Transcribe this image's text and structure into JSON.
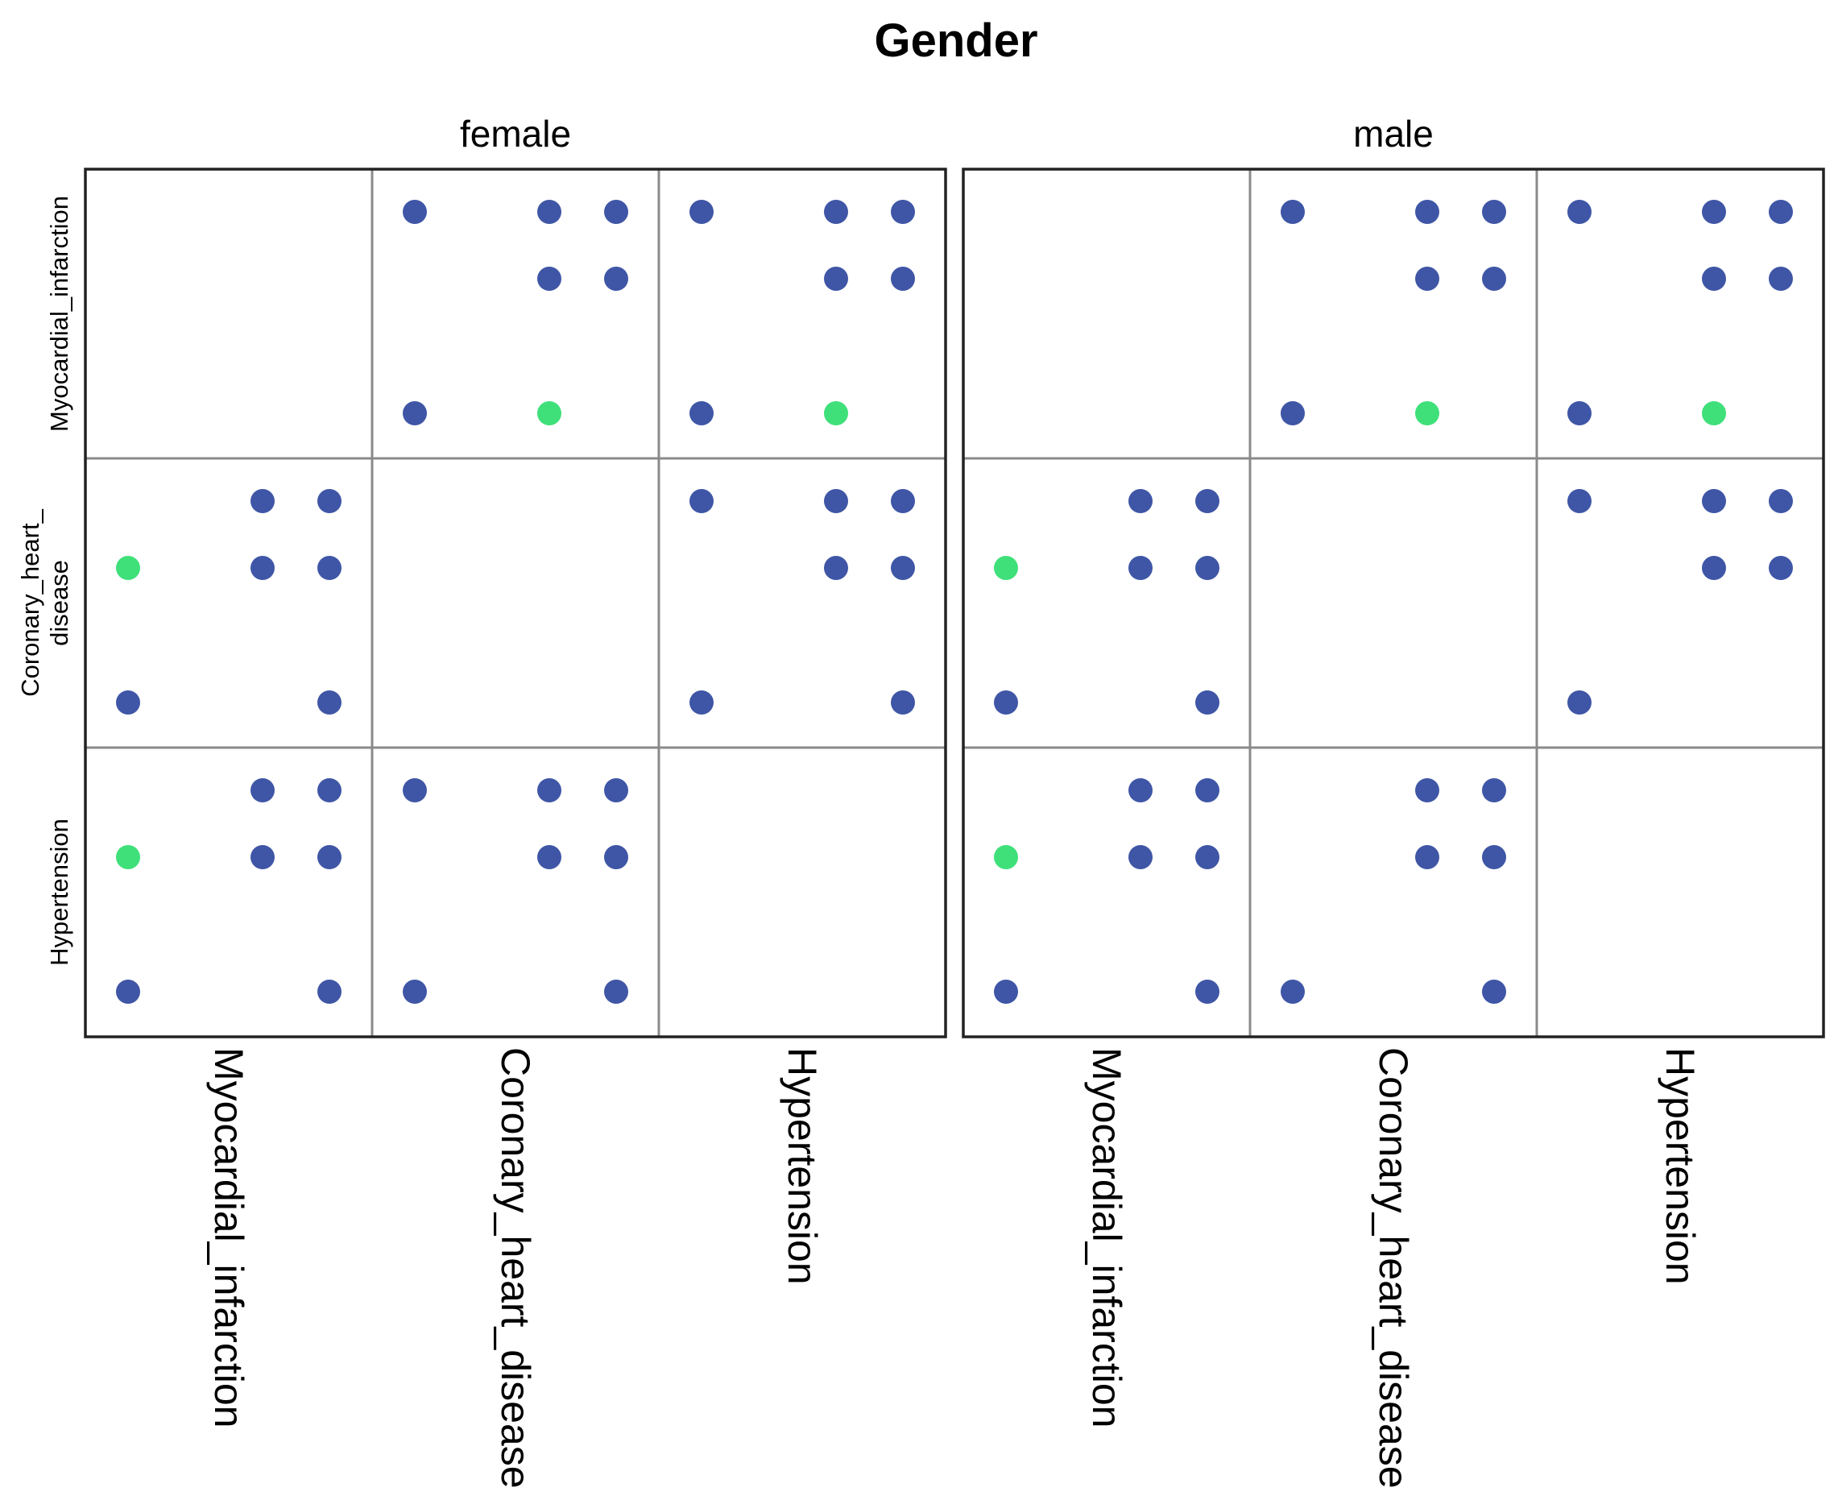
{
  "chart_data": {
    "type": "scatter",
    "chart_kind": "faceted scatterplot matrix",
    "title": "Gender",
    "panels": [
      "female",
      "male"
    ],
    "variables": [
      "Myocardial_infarction",
      "Coronary_heart_disease",
      "Hypertension"
    ],
    "row_labels": [
      [
        "Myocardial_infarction"
      ],
      [
        "Coronary_heart_",
        "disease"
      ],
      [
        "Hypertension"
      ]
    ],
    "col_labels": [
      "Myocardial_infarction",
      "Coronary_heart_disease",
      "Hypertension"
    ],
    "axis_levels": {
      "x": [
        0,
        1,
        2,
        3
      ],
      "y": [
        0,
        1,
        2,
        3
      ]
    },
    "colors": {
      "point": "#3f56a6",
      "highlight": "#3fe07a",
      "frame": "#222222",
      "inner_line": "#8a8a8a"
    },
    "cells": {
      "female": [
        [
          null,
          [
            [
              0,
              3,
              "point"
            ],
            [
              2,
              3,
              "point"
            ],
            [
              3,
              3,
              "point"
            ],
            [
              2,
              2,
              "point"
            ],
            [
              3,
              2,
              "point"
            ],
            [
              0,
              0,
              "point"
            ],
            [
              2,
              0,
              "highlight"
            ]
          ],
          [
            [
              0,
              3,
              "point"
            ],
            [
              2,
              3,
              "point"
            ],
            [
              3,
              3,
              "point"
            ],
            [
              2,
              2,
              "point"
            ],
            [
              3,
              2,
              "point"
            ],
            [
              0,
              0,
              "point"
            ],
            [
              2,
              0,
              "highlight"
            ]
          ]
        ],
        [
          [
            [
              2,
              3,
              "point"
            ],
            [
              3,
              3,
              "point"
            ],
            [
              0,
              2,
              "highlight"
            ],
            [
              2,
              2,
              "point"
            ],
            [
              3,
              2,
              "point"
            ],
            [
              0,
              0,
              "point"
            ],
            [
              3,
              0,
              "point"
            ]
          ],
          null,
          [
            [
              0,
              3,
              "point"
            ],
            [
              2,
              3,
              "point"
            ],
            [
              3,
              3,
              "point"
            ],
            [
              2,
              2,
              "point"
            ],
            [
              3,
              2,
              "point"
            ],
            [
              0,
              0,
              "point"
            ],
            [
              3,
              0,
              "point"
            ]
          ]
        ],
        [
          [
            [
              2,
              3,
              "point"
            ],
            [
              3,
              3,
              "point"
            ],
            [
              0,
              2,
              "highlight"
            ],
            [
              2,
              2,
              "point"
            ],
            [
              3,
              2,
              "point"
            ],
            [
              0,
              0,
              "point"
            ],
            [
              3,
              0,
              "point"
            ]
          ],
          [
            [
              0,
              3,
              "point"
            ],
            [
              2,
              3,
              "point"
            ],
            [
              3,
              3,
              "point"
            ],
            [
              2,
              2,
              "point"
            ],
            [
              3,
              2,
              "point"
            ],
            [
              0,
              0,
              "point"
            ],
            [
              3,
              0,
              "point"
            ]
          ],
          null
        ]
      ],
      "male": [
        [
          null,
          [
            [
              0,
              3,
              "point"
            ],
            [
              2,
              3,
              "point"
            ],
            [
              3,
              3,
              "point"
            ],
            [
              2,
              2,
              "point"
            ],
            [
              3,
              2,
              "point"
            ],
            [
              0,
              0,
              "point"
            ],
            [
              2,
              0,
              "highlight"
            ]
          ],
          [
            [
              0,
              3,
              "point"
            ],
            [
              2,
              3,
              "point"
            ],
            [
              3,
              3,
              "point"
            ],
            [
              2,
              2,
              "point"
            ],
            [
              3,
              2,
              "point"
            ],
            [
              0,
              0,
              "point"
            ],
            [
              2,
              0,
              "highlight"
            ]
          ]
        ],
        [
          [
            [
              2,
              3,
              "point"
            ],
            [
              3,
              3,
              "point"
            ],
            [
              0,
              2,
              "highlight"
            ],
            [
              2,
              2,
              "point"
            ],
            [
              3,
              2,
              "point"
            ],
            [
              0,
              0,
              "point"
            ],
            [
              3,
              0,
              "point"
            ]
          ],
          null,
          [
            [
              0,
              3,
              "point"
            ],
            [
              2,
              3,
              "point"
            ],
            [
              3,
              3,
              "point"
            ],
            [
              2,
              2,
              "point"
            ],
            [
              3,
              2,
              "point"
            ],
            [
              0,
              0,
              "point"
            ]
          ]
        ],
        [
          [
            [
              2,
              3,
              "point"
            ],
            [
              3,
              3,
              "point"
            ],
            [
              0,
              2,
              "highlight"
            ],
            [
              2,
              2,
              "point"
            ],
            [
              3,
              2,
              "point"
            ],
            [
              0,
              0,
              "point"
            ],
            [
              3,
              0,
              "point"
            ]
          ],
          [
            [
              2,
              3,
              "point"
            ],
            [
              3,
              3,
              "point"
            ],
            [
              2,
              2,
              "point"
            ],
            [
              3,
              2,
              "point"
            ],
            [
              0,
              0,
              "point"
            ],
            [
              3,
              0,
              "point"
            ]
          ],
          null
        ]
      ]
    }
  }
}
